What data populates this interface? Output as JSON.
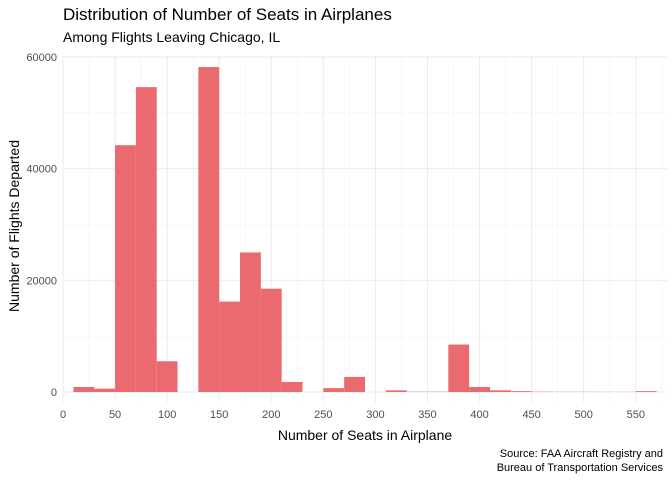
{
  "chart_data": {
    "type": "bar",
    "title": "Distribution of Number of Seats in Airplanes",
    "subtitle": "Among Flights Leaving Chicago, IL",
    "xlabel": "Number of Seats in Airplane",
    "ylabel": "Number of Flights Departed",
    "caption_lines": [
      "Source: FAA Aircraft Registry and",
      "Bureau of Transportation Services"
    ],
    "xlim": [
      0,
      580
    ],
    "ylim": [
      0,
      61000
    ],
    "x_ticks": [
      0,
      50,
      100,
      150,
      200,
      250,
      300,
      350,
      400,
      450,
      500,
      550
    ],
    "x_tick_labels": [
      "0",
      "50",
      "100",
      "150",
      "200",
      "250",
      "300",
      "350",
      "400",
      "450",
      "500",
      "550"
    ],
    "y_ticks": [
      0,
      20000,
      40000,
      60000
    ],
    "y_tick_labels": [
      "0",
      "20000",
      "40000",
      "60000"
    ],
    "bin_width": 20,
    "bins": [
      {
        "x0": 10,
        "x1": 30,
        "count": 900
      },
      {
        "x0": 30,
        "x1": 50,
        "count": 600
      },
      {
        "x0": 50,
        "x1": 70,
        "count": 44200
      },
      {
        "x0": 70,
        "x1": 90,
        "count": 54600
      },
      {
        "x0": 90,
        "x1": 110,
        "count": 5500
      },
      {
        "x0": 110,
        "x1": 130,
        "count": 0
      },
      {
        "x0": 130,
        "x1": 150,
        "count": 58200
      },
      {
        "x0": 150,
        "x1": 170,
        "count": 16200
      },
      {
        "x0": 170,
        "x1": 190,
        "count": 25000
      },
      {
        "x0": 190,
        "x1": 210,
        "count": 18500
      },
      {
        "x0": 210,
        "x1": 230,
        "count": 1800
      },
      {
        "x0": 230,
        "x1": 250,
        "count": 0
      },
      {
        "x0": 250,
        "x1": 270,
        "count": 700
      },
      {
        "x0": 270,
        "x1": 290,
        "count": 2700
      },
      {
        "x0": 290,
        "x1": 310,
        "count": 0
      },
      {
        "x0": 310,
        "x1": 330,
        "count": 300
      },
      {
        "x0": 330,
        "x1": 350,
        "count": 50
      },
      {
        "x0": 350,
        "x1": 370,
        "count": 50
      },
      {
        "x0": 370,
        "x1": 390,
        "count": 8500
      },
      {
        "x0": 390,
        "x1": 410,
        "count": 900
      },
      {
        "x0": 410,
        "x1": 430,
        "count": 300
      },
      {
        "x0": 430,
        "x1": 450,
        "count": 150
      },
      {
        "x0": 450,
        "x1": 470,
        "count": 50
      },
      {
        "x0": 470,
        "x1": 490,
        "count": 30
      },
      {
        "x0": 490,
        "x1": 510,
        "count": 30
      },
      {
        "x0": 510,
        "x1": 530,
        "count": 20
      },
      {
        "x0": 530,
        "x1": 550,
        "count": 20
      },
      {
        "x0": 550,
        "x1": 570,
        "count": 150
      }
    ],
    "bar_color": "#eb6a6f",
    "grid": true
  }
}
